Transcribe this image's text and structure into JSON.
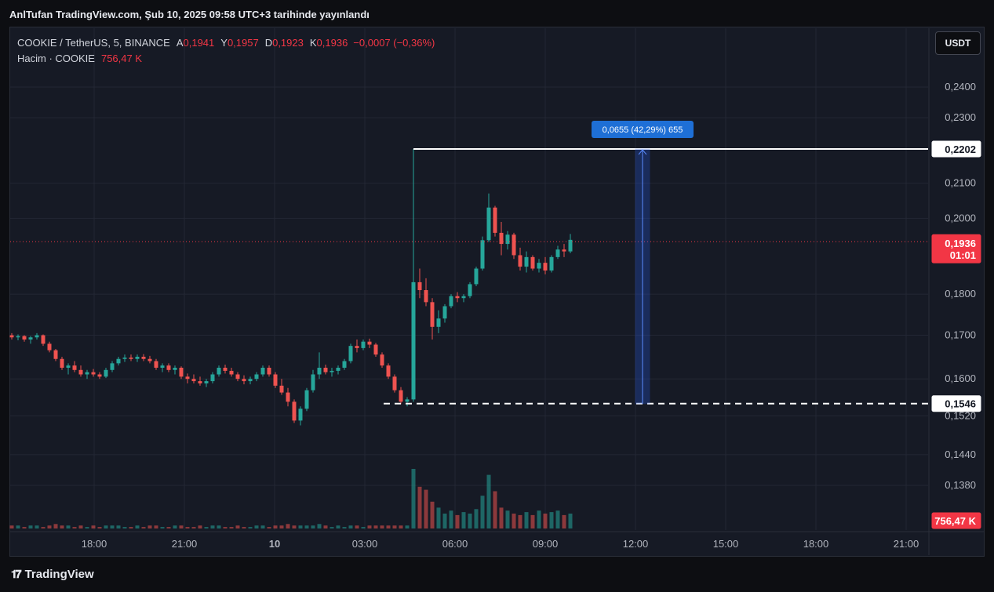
{
  "caption": "AnlTufan TradingView.com, Şub 10, 2025 09:58 UTC+3 tarihinde yayınlandı",
  "header": {
    "symbol": "COOKIE / TetherUS, 5, BINANCE",
    "open_label": "A",
    "open": "0,1941",
    "high_label": "Y",
    "high": "0,1957",
    "low_label": "D",
    "low": "0,1923",
    "close_label": "K",
    "close": "0,1936",
    "change": "−0,0007 (−0,36%)",
    "volume_label": "Hacim · COOKIE",
    "volume": "756,47 K"
  },
  "currency_button": "USDT",
  "footer": {
    "brand": "TradingView"
  },
  "colors": {
    "up": "#26a69a",
    "down": "#ef5350",
    "price_line": "#f23645",
    "measure": "#2962ff"
  },
  "chart_data": {
    "type": "candlestick",
    "x_ticks": [
      "18:00",
      "21:00",
      "10",
      "03:00",
      "06:00",
      "09:00",
      "12:00",
      "15:00",
      "18:00",
      "21:00"
    ],
    "y_ticks": [
      "0,2400",
      "0,2300",
      "0,2100",
      "0,2000",
      "0,1800",
      "0,1700",
      "0,1600",
      "0,1520",
      "0,1440",
      "0,1380"
    ],
    "price_label": {
      "value": "0,1936",
      "countdown": "01:01"
    },
    "volume_label": "756,47 K",
    "levels": [
      {
        "value": "0,2202",
        "style": "solid"
      },
      {
        "value": "0,1546",
        "style": "dashed"
      }
    ],
    "measure": {
      "text": "0,0655 (42,29%) 655"
    },
    "candles": [
      [
        0.17,
        0.1705,
        0.169,
        0.1695
      ],
      [
        0.1695,
        0.1702,
        0.1688,
        0.1698
      ],
      [
        0.1698,
        0.17,
        0.1685,
        0.169
      ],
      [
        0.169,
        0.1698,
        0.168,
        0.1695
      ],
      [
        0.1695,
        0.1705,
        0.169,
        0.17
      ],
      [
        0.17,
        0.1702,
        0.1675,
        0.168
      ],
      [
        0.168,
        0.1685,
        0.166,
        0.1665
      ],
      [
        0.1665,
        0.1668,
        0.164,
        0.1645
      ],
      [
        0.1645,
        0.165,
        0.162,
        0.1625
      ],
      [
        0.1625,
        0.1635,
        0.161,
        0.163
      ],
      [
        0.163,
        0.164,
        0.1615,
        0.162
      ],
      [
        0.162,
        0.163,
        0.1605,
        0.161
      ],
      [
        0.161,
        0.162,
        0.16,
        0.1615
      ],
      [
        0.1615,
        0.1622,
        0.1605,
        0.161
      ],
      [
        0.161,
        0.1615,
        0.16,
        0.1605
      ],
      [
        0.1605,
        0.1625,
        0.1602,
        0.162
      ],
      [
        0.162,
        0.164,
        0.1615,
        0.1635
      ],
      [
        0.1635,
        0.165,
        0.163,
        0.1645
      ],
      [
        0.1645,
        0.1655,
        0.1638,
        0.1648
      ],
      [
        0.1648,
        0.1655,
        0.164,
        0.1645
      ],
      [
        0.1645,
        0.1655,
        0.1638,
        0.165
      ],
      [
        0.165,
        0.1656,
        0.164,
        0.1645
      ],
      [
        0.1645,
        0.1652,
        0.1635,
        0.164
      ],
      [
        0.164,
        0.1645,
        0.162,
        0.1625
      ],
      [
        0.1625,
        0.1635,
        0.1615,
        0.163
      ],
      [
        0.163,
        0.1635,
        0.1615,
        0.162
      ],
      [
        0.162,
        0.163,
        0.161,
        0.1625
      ],
      [
        0.1625,
        0.1628,
        0.16,
        0.1605
      ],
      [
        0.1605,
        0.1612,
        0.159,
        0.16
      ],
      [
        0.16,
        0.161,
        0.159,
        0.1595
      ],
      [
        0.1595,
        0.1605,
        0.1585,
        0.159
      ],
      [
        0.159,
        0.16,
        0.1582,
        0.1595
      ],
      [
        0.1595,
        0.1615,
        0.159,
        0.161
      ],
      [
        0.161,
        0.163,
        0.1605,
        0.1625
      ],
      [
        0.1625,
        0.1632,
        0.1612,
        0.1618
      ],
      [
        0.1618,
        0.1625,
        0.1605,
        0.161
      ],
      [
        0.161,
        0.1615,
        0.1595,
        0.16
      ],
      [
        0.16,
        0.1608,
        0.1588,
        0.1595
      ],
      [
        0.1595,
        0.1605,
        0.1588,
        0.16
      ],
      [
        0.16,
        0.1615,
        0.1595,
        0.161
      ],
      [
        0.161,
        0.163,
        0.1605,
        0.1625
      ],
      [
        0.1625,
        0.163,
        0.1605,
        0.161
      ],
      [
        0.161,
        0.1615,
        0.158,
        0.1585
      ],
      [
        0.1585,
        0.16,
        0.1565,
        0.157
      ],
      [
        0.157,
        0.158,
        0.154,
        0.155
      ],
      [
        0.155,
        0.1555,
        0.1505,
        0.151
      ],
      [
        0.151,
        0.154,
        0.15,
        0.1535
      ],
      [
        0.1535,
        0.158,
        0.153,
        0.1575
      ],
      [
        0.1575,
        0.162,
        0.157,
        0.161
      ],
      [
        0.161,
        0.166,
        0.16,
        0.1625
      ],
      [
        0.1625,
        0.1632,
        0.161,
        0.1615
      ],
      [
        0.1615,
        0.1625,
        0.1605,
        0.1618
      ],
      [
        0.1618,
        0.163,
        0.161,
        0.1625
      ],
      [
        0.1625,
        0.1645,
        0.162,
        0.164
      ],
      [
        0.164,
        0.168,
        0.1635,
        0.1675
      ],
      [
        0.1675,
        0.169,
        0.166,
        0.167
      ],
      [
        0.167,
        0.169,
        0.1665,
        0.1685
      ],
      [
        0.1685,
        0.1692,
        0.167,
        0.1678
      ],
      [
        0.1678,
        0.1682,
        0.165,
        0.1655
      ],
      [
        0.1655,
        0.166,
        0.1625,
        0.163
      ],
      [
        0.163,
        0.1635,
        0.16,
        0.1605
      ],
      [
        0.1605,
        0.161,
        0.157,
        0.1575
      ],
      [
        0.1575,
        0.1582,
        0.1545,
        0.155
      ],
      [
        0.155,
        0.156,
        0.154,
        0.1555
      ],
      [
        0.1555,
        0.2202,
        0.155,
        0.183
      ],
      [
        0.183,
        0.1865,
        0.179,
        0.181
      ],
      [
        0.181,
        0.184,
        0.177,
        0.178
      ],
      [
        0.178,
        0.179,
        0.169,
        0.172
      ],
      [
        0.172,
        0.176,
        0.1705,
        0.174
      ],
      [
        0.174,
        0.1775,
        0.173,
        0.177
      ],
      [
        0.177,
        0.18,
        0.1765,
        0.1795
      ],
      [
        0.1795,
        0.1805,
        0.178,
        0.179
      ],
      [
        0.179,
        0.18,
        0.178,
        0.1795
      ],
      [
        0.1795,
        0.183,
        0.179,
        0.1825
      ],
      [
        0.1825,
        0.187,
        0.182,
        0.1865
      ],
      [
        0.1865,
        0.195,
        0.186,
        0.194
      ],
      [
        0.194,
        0.207,
        0.1935,
        0.203
      ],
      [
        0.203,
        0.2035,
        0.195,
        0.196
      ],
      [
        0.196,
        0.199,
        0.19,
        0.193
      ],
      [
        0.193,
        0.1965,
        0.1915,
        0.1955
      ],
      [
        0.1955,
        0.196,
        0.189,
        0.19
      ],
      [
        0.19,
        0.192,
        0.186,
        0.187
      ],
      [
        0.187,
        0.191,
        0.1855,
        0.1895
      ],
      [
        0.1895,
        0.19,
        0.186,
        0.1865
      ],
      [
        0.1865,
        0.189,
        0.1855,
        0.188
      ],
      [
        0.188,
        0.1895,
        0.185,
        0.186
      ],
      [
        0.186,
        0.19,
        0.1855,
        0.1895
      ],
      [
        0.1895,
        0.1925,
        0.189,
        0.1915
      ],
      [
        0.1915,
        0.193,
        0.1895,
        0.191
      ],
      [
        0.191,
        0.1957,
        0.1905,
        0.1941
      ]
    ],
    "volumes": [
      2,
      2,
      1,
      2,
      2,
      1,
      2,
      3,
      2,
      2,
      1,
      2,
      1,
      2,
      1,
      2,
      2,
      2,
      1,
      1,
      2,
      1,
      2,
      2,
      1,
      1,
      2,
      2,
      1,
      1,
      2,
      1,
      2,
      2,
      1,
      1,
      2,
      1,
      1,
      2,
      2,
      1,
      2,
      2,
      3,
      2,
      2,
      2,
      2,
      3,
      2,
      1,
      2,
      1,
      2,
      2,
      1,
      2,
      2,
      2,
      2,
      2,
      2,
      2,
      40,
      28,
      26,
      18,
      14,
      10,
      12,
      9,
      11,
      10,
      13,
      22,
      36,
      25,
      14,
      12,
      10,
      9,
      11,
      9,
      12,
      10,
      11,
      12,
      9,
      10,
      8
    ]
  }
}
